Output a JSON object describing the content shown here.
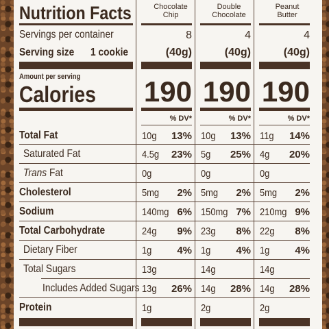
{
  "title": "Nutrition Facts",
  "serving": {
    "servings_label": "Servings per container",
    "size_label": "Serving size",
    "size_value": "1 cookie"
  },
  "amount_per_serving": "Amount per serving",
  "calories_label": "Calories",
  "dv_header": "% DV*",
  "columns": [
    {
      "name_line1": "Chocolate",
      "name_line2": "Chip",
      "servings": "8",
      "serving_weight": "(40g)",
      "calories": "190",
      "total_fat": "10g",
      "total_fat_dv": "13%",
      "sat_fat": "4.5g",
      "sat_fat_dv": "23%",
      "trans_fat": "0g",
      "cholesterol": "5mg",
      "cholesterol_dv": "2%",
      "sodium": "140mg",
      "sodium_dv": "6%",
      "carb": "24g",
      "carb_dv": "9%",
      "fiber": "1g",
      "fiber_dv": "4%",
      "sugars": "13g",
      "added_sugars": "13g",
      "added_sugars_dv": "26%",
      "protein": "1g"
    },
    {
      "name_line1": "Double",
      "name_line2": "Chocolate",
      "servings": "4",
      "serving_weight": "(40g)",
      "calories": "190",
      "total_fat": "10g",
      "total_fat_dv": "13%",
      "sat_fat": "5g",
      "sat_fat_dv": "25%",
      "trans_fat": "0g",
      "cholesterol": "5mg",
      "cholesterol_dv": "2%",
      "sodium": "150mg",
      "sodium_dv": "7%",
      "carb": "23g",
      "carb_dv": "8%",
      "fiber": "1g",
      "fiber_dv": "4%",
      "sugars": "14g",
      "added_sugars": "14g",
      "added_sugars_dv": "28%",
      "protein": "2g"
    },
    {
      "name_line1": "Peanut",
      "name_line2": "Butter",
      "servings": "4",
      "serving_weight": "(40g)",
      "calories": "190",
      "total_fat": "11g",
      "total_fat_dv": "14%",
      "sat_fat": "4g",
      "sat_fat_dv": "20%",
      "trans_fat": "0g",
      "cholesterol": "5mg",
      "cholesterol_dv": "2%",
      "sodium": "210mg",
      "sodium_dv": "9%",
      "carb": "22g",
      "carb_dv": "8%",
      "fiber": "1g",
      "fiber_dv": "4%",
      "sugars": "14g",
      "added_sugars": "14g",
      "added_sugars_dv": "28%",
      "protein": "2g"
    }
  ],
  "rows": {
    "total_fat": "Total Fat",
    "sat_fat": "Saturated Fat",
    "trans_fat_italic": "Trans",
    "trans_fat_rest": " Fat",
    "cholesterol": "Cholesterol",
    "sodium": "Sodium",
    "carb": "Total Carbohydrate",
    "fiber": "Dietary Fiber",
    "sugars": "Total Sugars",
    "added_sugars": "Includes Added Sugars",
    "protein": "Protein"
  },
  "colors": {
    "label_bg": "#f7f5f1",
    "ink": "#4a3326",
    "backdrop": "#6b4428"
  }
}
